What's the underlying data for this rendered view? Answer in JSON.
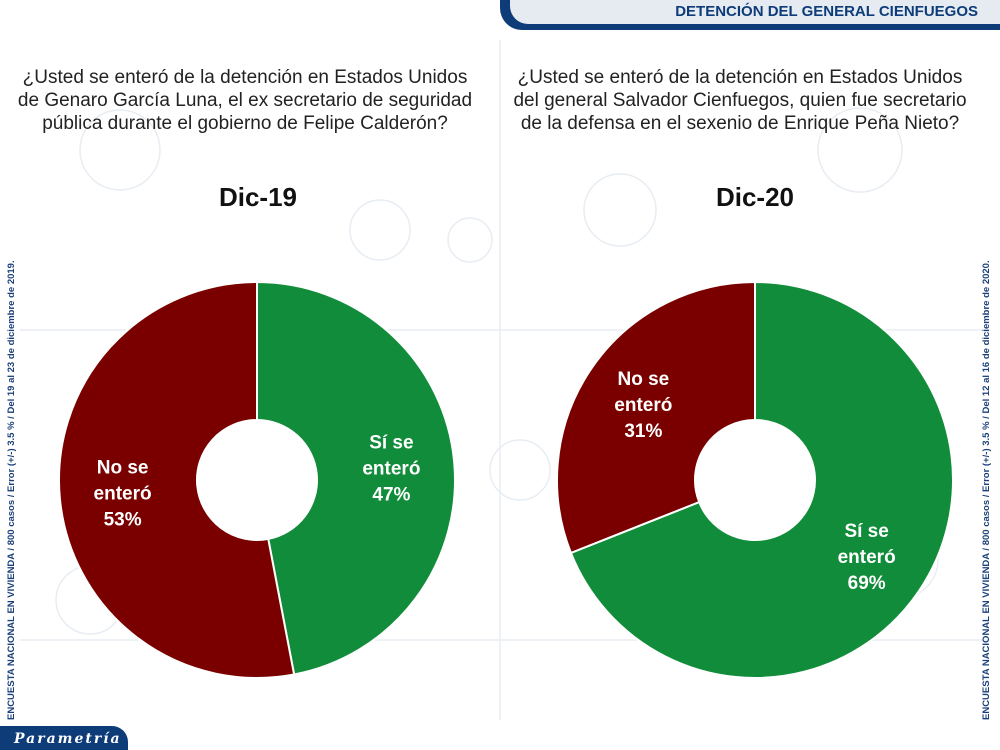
{
  "header": {
    "title": "DETENCIÓN DEL GENERAL CIENFUEGOS"
  },
  "footer": {
    "logo": "Parametría"
  },
  "side_notes": {
    "left": "ENCUESTA NACIONAL EN VIVIENDA / 800 casos / Error (+/-) 3.5 % / Del 19 al 23 de diciembre de 2019.",
    "right": "ENCUESTA NACIONAL EN VIVIENDA / 800 casos / Error (+/-) 3.5 % / Del 12 al 16 de diciembre de 2020."
  },
  "colors": {
    "si": "#118c3a",
    "no": "#7a0000",
    "brand": "#0d3c79"
  },
  "chart_data": [
    {
      "type": "pie",
      "title": "¿Usted se enteró de la detención en Estados Unidos de Genaro García Luna, el ex secretario de seguridad pública durante el gobierno de Felipe Calderón?",
      "subtitle": "Dic-19",
      "categories": [
        "Sí se enteró",
        "No se enteró"
      ],
      "values": [
        47,
        53
      ],
      "labels": [
        {
          "lines": [
            "Sí se",
            "enteró"
          ],
          "value_text": "47%"
        },
        {
          "lines": [
            "No se",
            "enteró"
          ],
          "value_text": "53%"
        }
      ]
    },
    {
      "type": "pie",
      "title": "¿Usted se enteró de la detención en Estados Unidos del general Salvador Cienfuegos, quien fue secretario de la defensa en el sexenio de Enrique Peña Nieto?",
      "subtitle": "Dic-20",
      "categories": [
        "Sí se enteró",
        "No se enteró"
      ],
      "values": [
        69,
        31
      ],
      "labels": [
        {
          "lines": [
            "Sí se",
            "enteró"
          ],
          "value_text": "69%"
        },
        {
          "lines": [
            "No se",
            "enteró"
          ],
          "value_text": "31%"
        }
      ]
    }
  ]
}
